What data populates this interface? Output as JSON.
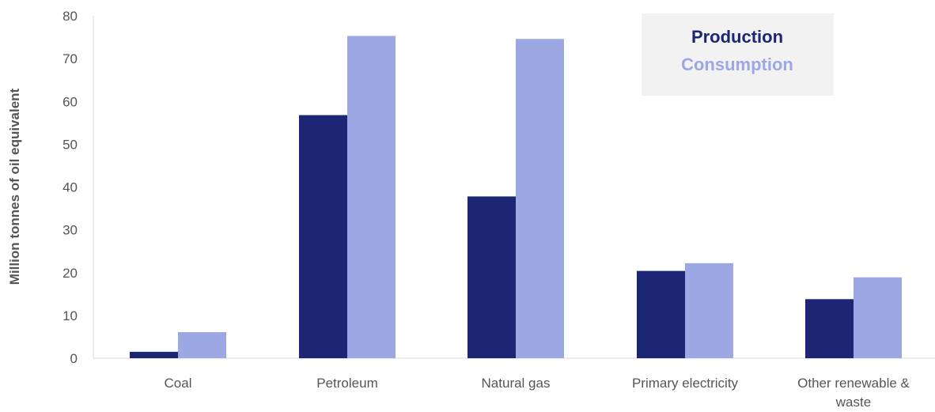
{
  "chart_data": {
    "type": "bar",
    "title": "",
    "xlabel": "",
    "ylabel": "Million tonnes of oil equivalent",
    "ylim": [
      0,
      80
    ],
    "yticks": [
      0,
      10,
      20,
      30,
      40,
      50,
      60,
      70,
      80
    ],
    "categories": [
      "Coal",
      "Petroleum",
      "Natural gas",
      "Primary electricity",
      "Other renewable & waste"
    ],
    "series": [
      {
        "name": "Production",
        "color": "#1c2674",
        "values": [
          1.5,
          56.8,
          37.8,
          20.4,
          13.8
        ]
      },
      {
        "name": "Consumption",
        "color": "#9ba8e4",
        "values": [
          6.1,
          75.3,
          74.6,
          22.2,
          18.9
        ]
      }
    ],
    "grid": false,
    "legend": {
      "position": "top-right",
      "background": "#f2f2f2"
    }
  }
}
